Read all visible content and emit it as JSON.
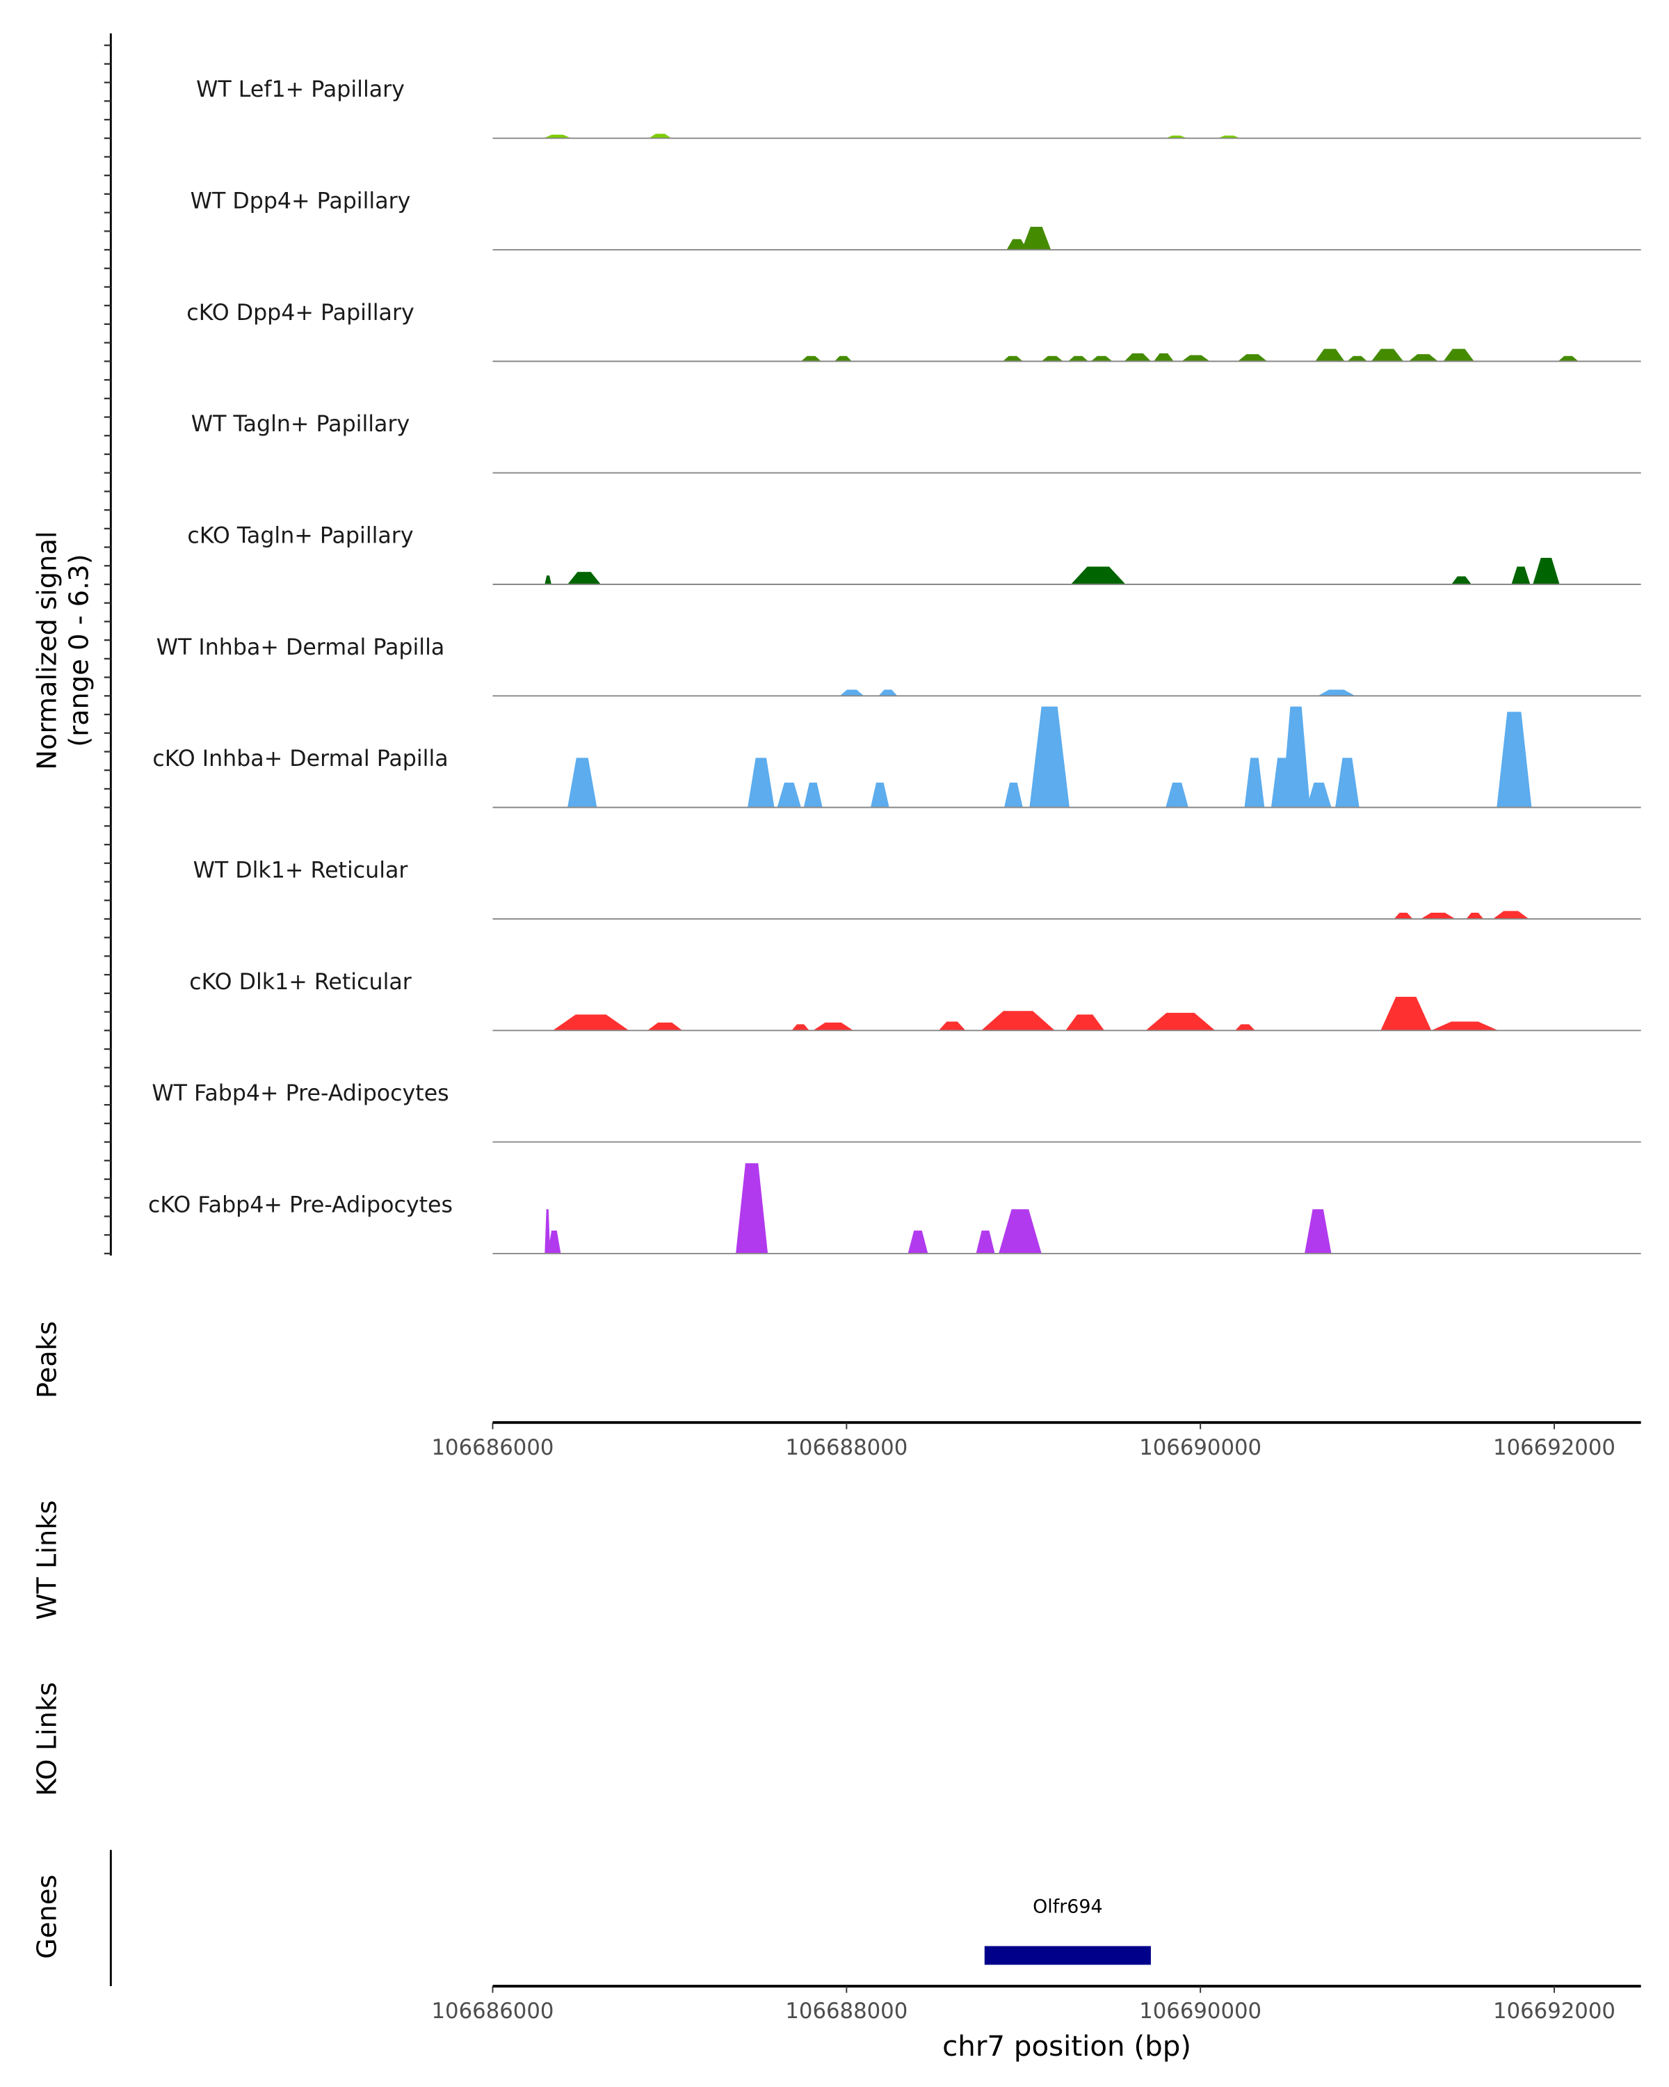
{
  "chart_data": {
    "type": "area",
    "title": "",
    "ylabel_line1": "Normalized signal",
    "ylabel_line2": "(range 0 - 6.3)",
    "ylim": [
      0,
      6.3
    ],
    "xlabel": "chr7 position (bp)",
    "xlim": [
      106686000,
      106692490
    ],
    "xticks": [
      106686000,
      106688000,
      106690000,
      106692000
    ],
    "xtick_labels": [
      "106686000",
      "106688000",
      "106690000",
      "106692000"
    ],
    "tracks": [
      {
        "name": "WT Lef1+ Papillary",
        "color": "#7CCD00",
        "peaks": [
          [
            106686287,
            106686445,
            0.2
          ],
          [
            106686883,
            106687011,
            0.25
          ],
          [
            106689804,
            106689924,
            0.15
          ],
          [
            106690098,
            106690226,
            0.15
          ]
        ]
      },
      {
        "name": "WT Dpp4+ Papillary",
        "color": "#458B00",
        "peaks": [
          [
            106688905,
            106689020,
            0.6
          ],
          [
            106688990,
            106689155,
            1.3
          ]
        ]
      },
      {
        "name": "cKO Dpp4+ Papillary",
        "color": "#458B00",
        "peaks": [
          [
            106687743,
            106687857,
            0.3
          ],
          [
            106687932,
            106688030,
            0.3
          ],
          [
            106688883,
            106688996,
            0.3
          ],
          [
            106689102,
            106689223,
            0.3
          ],
          [
            106689253,
            106689366,
            0.3
          ],
          [
            106689381,
            106689502,
            0.3
          ],
          [
            106689570,
            106689721,
            0.45
          ],
          [
            106689736,
            106689849,
            0.45
          ],
          [
            106689894,
            106690053,
            0.35
          ],
          [
            106690211,
            106690377,
            0.4
          ],
          [
            106690649,
            106690815,
            0.7
          ],
          [
            106690830,
            106690943,
            0.3
          ],
          [
            106690966,
            106691147,
            0.7
          ],
          [
            106691177,
            106691343,
            0.4
          ],
          [
            106691373,
            106691547,
            0.7
          ],
          [
            106692022,
            106692136,
            0.3
          ]
        ]
      },
      {
        "name": "WT Tagln+ Papillary",
        "color": "#006400",
        "peaks": []
      },
      {
        "name": "cKO Tagln+ Papillary",
        "color": "#006400",
        "peaks": [
          [
            106686294,
            106686332,
            0.5
          ],
          [
            106686423,
            106686611,
            0.7
          ],
          [
            106689268,
            106689577,
            1.0
          ],
          [
            106691419,
            106691532,
            0.45
          ],
          [
            106691758,
            106691864,
            1.0
          ],
          [
            106691879,
            106692030,
            1.5
          ]
        ]
      },
      {
        "name": "WT Inhba+ Dermal Papilla",
        "color": "#5CACEE",
        "peaks": [
          [
            106687962,
            106688098,
            0.35
          ],
          [
            106688181,
            106688287,
            0.35
          ],
          [
            106690664,
            106690875,
            0.35
          ]
        ]
      },
      {
        "name": "cKO Inhba+ Dermal Papilla",
        "color": "#5CACEE",
        "peaks": [
          [
            106686423,
            106686589,
            2.8
          ],
          [
            106687441,
            106687592,
            2.8
          ],
          [
            106687608,
            106687743,
            1.4
          ],
          [
            106687758,
            106687864,
            1.4
          ],
          [
            106688136,
            106688241,
            1.4
          ],
          [
            106688891,
            106688996,
            1.4
          ],
          [
            106689034,
            106689260,
            5.7
          ],
          [
            106689804,
            106689932,
            1.4
          ],
          [
            106690249,
            106690362,
            2.8
          ],
          [
            106690400,
            106690520,
            2.8
          ],
          [
            106690460,
            106690620,
            5.7
          ],
          [
            106690600,
            106690740,
            1.4
          ],
          [
            106690762,
            106690898,
            2.8
          ],
          [
            106691675,
            106691872,
            5.4
          ]
        ]
      },
      {
        "name": "WT Dlk1+ Reticular",
        "color": "#FF3030",
        "peaks": [
          [
            106691094,
            106691200,
            0.35
          ],
          [
            106691245,
            106691441,
            0.35
          ],
          [
            106691502,
            106691600,
            0.35
          ],
          [
            106691653,
            106691857,
            0.45
          ]
        ]
      },
      {
        "name": "cKO Dlk1+ Reticular",
        "color": "#FF3030",
        "peaks": [
          [
            106686340,
            106686770,
            0.9
          ],
          [
            106686875,
            106687072,
            0.45
          ],
          [
            106687690,
            106687789,
            0.35
          ],
          [
            106687811,
            106688038,
            0.45
          ],
          [
            106688521,
            106688672,
            0.5
          ],
          [
            106688762,
            106689177,
            1.1
          ],
          [
            106689238,
            106689457,
            0.9
          ],
          [
            106689691,
            106690083,
            1.0
          ],
          [
            106690196,
            106690309,
            0.35
          ],
          [
            106691019,
            106691305,
            1.9
          ],
          [
            106691305,
            106691683,
            0.5
          ]
        ]
      },
      {
        "name": "WT Fabp4+ Pre-Adipocytes",
        "color": "#B23AEE",
        "peaks": []
      },
      {
        "name": "cKO Fabp4+ Pre-Adipocytes",
        "color": "#B23AEE",
        "peaks": [
          [
            106686294,
            106686325,
            2.5
          ],
          [
            106686310,
            106686385,
            1.3
          ],
          [
            106687374,
            106687555,
            5.1
          ],
          [
            106688347,
            106688460,
            1.3
          ],
          [
            106688732,
            106688838,
            1.3
          ],
          [
            106688860,
            106689102,
            2.5
          ],
          [
            106690589,
            106690740,
            2.5
          ]
        ]
      }
    ],
    "panels": {
      "peaks": "Peaks",
      "wt_links": "WT Links",
      "ko_links": "KO Links",
      "genes": "Genes"
    },
    "genes": [
      {
        "name": "Olfr694",
        "start": 106688780,
        "end": 106689720,
        "color": "#00008B"
      }
    ]
  }
}
